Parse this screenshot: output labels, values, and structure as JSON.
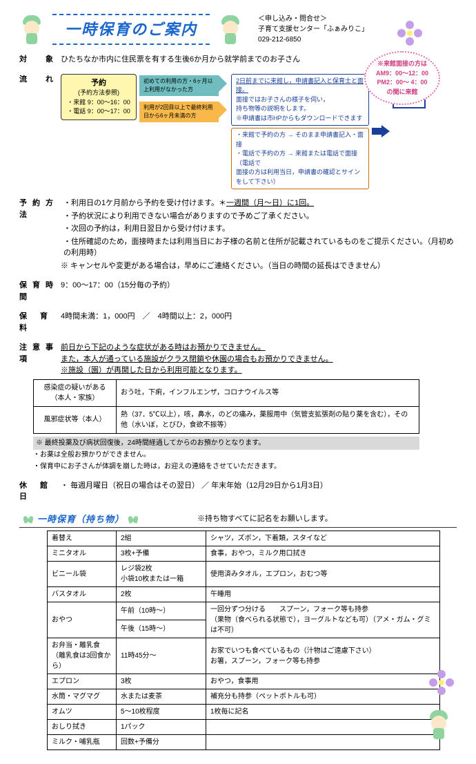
{
  "header": {
    "title": "一時保育のご案内",
    "contact_label": "＜申し込み・問合せ＞",
    "contact_center": "子育て支援センター「ふぁみりこ」",
    "contact_tel": "029-212-6850"
  },
  "bubble": {
    "line1": "※来館面接の方は",
    "line2": "AM9：00～12：00",
    "line3": "PM2：00～ 4：00",
    "line4": "の間に来館"
  },
  "target_label": "対　象",
  "target_text": "ひたちなか市内に住民票を有する生後6か月から就学前までのお子さん",
  "flow_label": "流　れ",
  "flow": {
    "reserve_title": "予約",
    "reserve_sub": "(予約方法参照)",
    "reserve_l1": "・来館 9：00～16：00",
    "reserve_l2": "・電話 9：00～17：00",
    "arrow_teal": "初めての利用の方・6ヶ月以上利用がなかった方",
    "arrow_orange": "利用が2回目以上で最終利用日から6ヶ月未満の方",
    "blue_box_l1": "2日前までに来館し，申請書記入と保育士と面接。",
    "blue_box_l2": "面接ではお子さんの様子を伺い，",
    "blue_box_l3": "持ち物等の説明をします。",
    "blue_box_l4": "※申請書は市HPからもダウンロードできます",
    "blue2_l1": "・来館で予約の方 → そのまま申請書記入・面接",
    "blue2_l2": "・電話で予約の方 → 来館または電話で面接（電話で",
    "blue2_l3": "面接の方は利用当日，申請書の確認とサインをして下さい）",
    "riyou": "利用当日"
  },
  "reserve_method_label": "予約方法",
  "reserve_method": [
    "利用日の1ケ月前から予約を受け付けます。＊一週間（月～日）に1回。",
    "予約状況により利用できない場合がありますので予めご了承ください。",
    "次回の予約は，利用日翌日から受け付けます。",
    "住所確認のため，面接時または利用当日にお子様の名前と住所が記載されているものをご提示ください。（月初めの利用時）"
  ],
  "reserve_cancel": "※ キャンセルや変更がある場合は，早めにご連絡ください。（当日の時間の延長はできません）",
  "hours_label": "保育時間",
  "hours_text": "9：00～17：00（15分毎の予約）",
  "fee_label": "保 育 料",
  "fee_text": "4時間未満：1，000円　／　4時間以上：2，000円",
  "caution_label": "注意事項",
  "caution_l1": "前日から下記のような症状がある時はお預かりできません。",
  "caution_l2": "また，本人が通っている施設がクラス閉鎖や休園の場合もお預かりできません。",
  "caution_l3": "※施設（園）が再開した日から利用可能となります。",
  "ill_table": {
    "h1": "感染症の疑いがある（本人・家族）",
    "c1": "おう吐，下痢，インフルエンザ，コロナウイルス等",
    "h2": "風邪症状等（本人）",
    "c2": "熱（37．5℃以上），咳，鼻水，のどの痛み，薬服用中（気管支拡張剤の貼り薬を含む），その他（水いぼ，とびひ，食欲不振等）"
  },
  "gray_note": "※ 最終投薬及び病状回復後，24時間経過してからのお預かりとなります。",
  "notes": [
    "お薬は全般お預かりができません。",
    "保育中にお子さんが体調を崩した時は，お迎えの連絡をさせていただきます。"
  ],
  "closed_label": "休 館 日",
  "closed_text": "毎週月曜日（祝日の場合はその翌日） ／ 年末年始（12月29日から1月3日）",
  "items_title": "一時保育（持ち物）",
  "items_note": "※持ち物すべてに記名をお願いします。",
  "items": [
    {
      "a": "着替え",
      "b": "2組",
      "c": "シャツ，ズボン，下着類，スタイなど"
    },
    {
      "a": "ミニタオル",
      "b": "3枚+予備",
      "c": "食事，おやつ，ミルク用口拭き"
    },
    {
      "a": "ビニール袋",
      "b": "レジ袋2枚\n小袋10枚または一箱",
      "c": "使用済みタオル，エプロン，おむつ等"
    },
    {
      "a": "バスタオル",
      "b": "2枚",
      "c": "午睡用"
    },
    {
      "a": "おやつ",
      "b": "午前（10時～）",
      "c": "一回分ずつ分ける　　スプーン，フォーク等も持参\n（果物（食べられる状態で），ヨーグルトなども可）（アメ・ガム・グミは不可）",
      "b2": "午後（15時～）"
    },
    {
      "a": "お弁当・離乳食\n（離乳食は3回食から）",
      "b": "11時45分～",
      "c": "お家でいつも食べているもの（汁物はご遠慮下さい）\nお箸，スプーン，フォーク等も持参"
    },
    {
      "a": "エプロン",
      "b": "3枚",
      "c": "おやつ，食事用"
    },
    {
      "a": "水筒・マグマグ",
      "b": "水または麦茶",
      "c": "補充分も持参（ペットボトルも可）"
    },
    {
      "a": "オムツ",
      "b": "5～10枚程度",
      "c": "1枚毎に記名"
    },
    {
      "a": "おしり拭き",
      "b": "1パック",
      "c": ""
    },
    {
      "a": "ミルク・哺乳瓶",
      "b": "回数+予備分",
      "c": ""
    }
  ]
}
